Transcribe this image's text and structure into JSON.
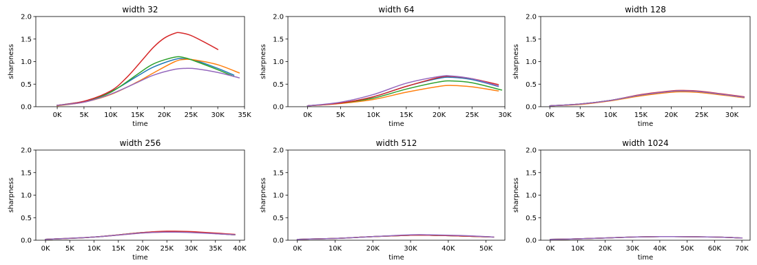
{
  "chart_data": [
    {
      "type": "line",
      "title": "width 32",
      "xlabel": "time",
      "ylabel": "sharpness",
      "xlim": [
        -4000,
        35000
      ],
      "ylim": [
        0,
        2.0
      ],
      "xticks": [
        0,
        5000,
        10000,
        15000,
        20000,
        25000,
        30000,
        35000
      ],
      "xtick_labels": [
        "0K",
        "5K",
        "10K",
        "15K",
        "20K",
        "25K",
        "30K",
        "35K"
      ],
      "yticks": [
        0,
        0.5,
        1.0,
        1.5,
        2.0
      ],
      "ytick_labels": [
        "0.0",
        "0.5",
        "1.0",
        "1.5",
        "2.0"
      ],
      "series": [
        {
          "color": "#1f77b4",
          "x": [
            0,
            5000,
            10000,
            15000,
            18000,
            22000,
            24000,
            26000,
            30000,
            33000
          ],
          "y": [
            0.03,
            0.12,
            0.33,
            0.68,
            0.88,
            1.05,
            1.06,
            1.02,
            0.85,
            0.7
          ]
        },
        {
          "color": "#ff7f0e",
          "x": [
            0,
            5000,
            10000,
            15000,
            18000,
            22000,
            24000,
            26000,
            30000,
            34000
          ],
          "y": [
            0.02,
            0.1,
            0.27,
            0.55,
            0.75,
            1.0,
            1.05,
            1.03,
            0.93,
            0.75
          ]
        },
        {
          "color": "#2ca02c",
          "x": [
            0,
            5000,
            10000,
            15000,
            18000,
            22000,
            24000,
            26000,
            30000,
            33000
          ],
          "y": [
            0.03,
            0.11,
            0.32,
            0.72,
            0.95,
            1.1,
            1.08,
            1.0,
            0.82,
            0.67
          ]
        },
        {
          "color": "#d62728",
          "x": [
            0,
            5000,
            10000,
            13000,
            16000,
            18000,
            20000,
            22000,
            23000,
            25000,
            28000,
            30000
          ],
          "y": [
            0.03,
            0.12,
            0.35,
            0.65,
            1.05,
            1.32,
            1.52,
            1.63,
            1.64,
            1.58,
            1.4,
            1.27
          ]
        },
        {
          "color": "#9467bd",
          "x": [
            0,
            5000,
            10000,
            15000,
            18000,
            22000,
            24000,
            26000,
            30000,
            34000
          ],
          "y": [
            0.03,
            0.1,
            0.28,
            0.54,
            0.7,
            0.83,
            0.85,
            0.84,
            0.76,
            0.64
          ]
        }
      ]
    },
    {
      "type": "line",
      "title": "width 64",
      "xlabel": "time",
      "ylabel": "sharpness",
      "xlim": [
        -3000,
        30000
      ],
      "ylim": [
        0,
        2.0
      ],
      "xticks": [
        0,
        5000,
        10000,
        15000,
        20000,
        25000,
        30000
      ],
      "xtick_labels": [
        "0K",
        "5K",
        "10K",
        "15K",
        "20K",
        "25K",
        "30K"
      ],
      "yticks": [
        0,
        0.5,
        1.0,
        1.5,
        2.0
      ],
      "ytick_labels": [
        "0.0",
        "0.5",
        "1.0",
        "1.5",
        "2.0"
      ],
      "series": [
        {
          "color": "#1f77b4",
          "x": [
            0,
            5000,
            10000,
            15000,
            20000,
            22000,
            25000,
            29000
          ],
          "y": [
            0.02,
            0.08,
            0.22,
            0.45,
            0.63,
            0.65,
            0.6,
            0.45
          ]
        },
        {
          "color": "#ff7f0e",
          "x": [
            0,
            5000,
            10000,
            15000,
            20000,
            22000,
            25000,
            29000
          ],
          "y": [
            0.02,
            0.07,
            0.16,
            0.32,
            0.45,
            0.47,
            0.44,
            0.35
          ]
        },
        {
          "color": "#2ca02c",
          "x": [
            0,
            5000,
            10000,
            15000,
            20000,
            22000,
            25000,
            29500
          ],
          "y": [
            0.02,
            0.08,
            0.19,
            0.39,
            0.55,
            0.57,
            0.53,
            0.37
          ]
        },
        {
          "color": "#d62728",
          "x": [
            0,
            5000,
            10000,
            15000,
            20000,
            22000,
            25000,
            29000
          ],
          "y": [
            0.02,
            0.08,
            0.22,
            0.45,
            0.65,
            0.67,
            0.62,
            0.49
          ]
        },
        {
          "color": "#9467bd",
          "x": [
            0,
            5000,
            10000,
            15000,
            20000,
            22000,
            25000,
            29000
          ],
          "y": [
            0.02,
            0.1,
            0.27,
            0.52,
            0.67,
            0.68,
            0.62,
            0.46
          ]
        }
      ]
    },
    {
      "type": "line",
      "title": "width 128",
      "xlabel": "time",
      "ylabel": "sharpness",
      "xlim": [
        -1500,
        33000
      ],
      "ylim": [
        0,
        2.0
      ],
      "xticks": [
        0,
        5000,
        10000,
        15000,
        20000,
        25000,
        30000
      ],
      "xtick_labels": [
        "0K",
        "5K",
        "10K",
        "15K",
        "20K",
        "25K",
        "30K"
      ],
      "yticks": [
        0,
        0.5,
        1.0,
        1.5,
        2.0
      ],
      "ytick_labels": [
        "0.0",
        "0.5",
        "1.0",
        "1.5",
        "2.0"
      ],
      "series": [
        {
          "color": "#1f77b4",
          "x": [
            0,
            5000,
            10000,
            15000,
            20000,
            22000,
            25000,
            32000
          ],
          "y": [
            0.02,
            0.06,
            0.14,
            0.26,
            0.34,
            0.35,
            0.33,
            0.21
          ]
        },
        {
          "color": "#ff7f0e",
          "x": [
            0,
            5000,
            10000,
            15000,
            20000,
            22000,
            25000,
            32000
          ],
          "y": [
            0.02,
            0.05,
            0.13,
            0.24,
            0.32,
            0.33,
            0.31,
            0.2
          ]
        },
        {
          "color": "#2ca02c",
          "x": [
            0,
            5000,
            10000,
            15000,
            20000,
            22000,
            25000,
            32000
          ],
          "y": [
            0.02,
            0.06,
            0.14,
            0.26,
            0.34,
            0.35,
            0.33,
            0.21
          ]
        },
        {
          "color": "#d62728",
          "x": [
            0,
            5000,
            10000,
            15000,
            20000,
            22000,
            25000,
            32000
          ],
          "y": [
            0.02,
            0.06,
            0.14,
            0.27,
            0.35,
            0.36,
            0.34,
            0.22
          ]
        },
        {
          "color": "#9467bd",
          "x": [
            0,
            5000,
            10000,
            15000,
            20000,
            22000,
            25000,
            32000
          ],
          "y": [
            0.02,
            0.06,
            0.14,
            0.26,
            0.34,
            0.35,
            0.33,
            0.21
          ]
        }
      ]
    },
    {
      "type": "line",
      "title": "width 256",
      "xlabel": "time",
      "ylabel": "sharpness",
      "xlim": [
        -2000,
        41000
      ],
      "ylim": [
        0,
        2.0
      ],
      "xticks": [
        0,
        5000,
        10000,
        15000,
        20000,
        25000,
        30000,
        35000,
        40000
      ],
      "xtick_labels": [
        "0K",
        "5K",
        "10K",
        "15K",
        "20K",
        "25K",
        "30K",
        "35K",
        "40K"
      ],
      "yticks": [
        0,
        0.5,
        1.0,
        1.5,
        2.0
      ],
      "ytick_labels": [
        "0.0",
        "0.5",
        "1.0",
        "1.5",
        "2.0"
      ],
      "series": [
        {
          "color": "#1f77b4",
          "x": [
            0,
            10000,
            20000,
            25000,
            30000,
            39000
          ],
          "y": [
            0.02,
            0.07,
            0.17,
            0.19,
            0.18,
            0.12
          ]
        },
        {
          "color": "#ff7f0e",
          "x": [
            0,
            10000,
            20000,
            25000,
            30000,
            39000
          ],
          "y": [
            0.02,
            0.07,
            0.16,
            0.18,
            0.18,
            0.12
          ]
        },
        {
          "color": "#2ca02c",
          "x": [
            0,
            10000,
            20000,
            25000,
            30000,
            39000
          ],
          "y": [
            0.02,
            0.07,
            0.17,
            0.19,
            0.18,
            0.12
          ]
        },
        {
          "color": "#d62728",
          "x": [
            0,
            10000,
            20000,
            25000,
            30000,
            39000
          ],
          "y": [
            0.02,
            0.07,
            0.17,
            0.2,
            0.19,
            0.13
          ]
        },
        {
          "color": "#9467bd",
          "x": [
            0,
            10000,
            20000,
            25000,
            30000,
            39000
          ],
          "y": [
            0.02,
            0.07,
            0.16,
            0.18,
            0.17,
            0.12
          ]
        }
      ]
    },
    {
      "type": "line",
      "title": "width 512",
      "xlabel": "time",
      "ylabel": "sharpness",
      "xlim": [
        -2500,
        55000
      ],
      "ylim": [
        0,
        2.0
      ],
      "xticks": [
        0,
        10000,
        20000,
        30000,
        40000,
        50000
      ],
      "xtick_labels": [
        "0K",
        "10K",
        "20K",
        "30K",
        "40K",
        "50K"
      ],
      "yticks": [
        0,
        0.5,
        1.0,
        1.5,
        2.0
      ],
      "ytick_labels": [
        "0.0",
        "0.5",
        "1.0",
        "1.5",
        "2.0"
      ],
      "series": [
        {
          "color": "#1f77b4",
          "x": [
            0,
            10000,
            20000,
            30000,
            35000,
            45000,
            52000
          ],
          "y": [
            0.02,
            0.04,
            0.08,
            0.11,
            0.11,
            0.09,
            0.07
          ]
        },
        {
          "color": "#ff7f0e",
          "x": [
            0,
            10000,
            20000,
            30000,
            35000,
            45000,
            52000
          ],
          "y": [
            0.02,
            0.04,
            0.08,
            0.11,
            0.11,
            0.09,
            0.07
          ]
        },
        {
          "color": "#2ca02c",
          "x": [
            0,
            10000,
            20000,
            30000,
            35000,
            45000,
            52000
          ],
          "y": [
            0.02,
            0.04,
            0.08,
            0.11,
            0.11,
            0.09,
            0.07
          ]
        },
        {
          "color": "#d62728",
          "x": [
            0,
            10000,
            20000,
            30000,
            35000,
            45000,
            52000
          ],
          "y": [
            0.02,
            0.04,
            0.08,
            0.11,
            0.11,
            0.09,
            0.07
          ]
        },
        {
          "color": "#9467bd",
          "x": [
            0,
            10000,
            20000,
            30000,
            35000,
            45000,
            52000
          ],
          "y": [
            0.02,
            0.04,
            0.08,
            0.12,
            0.12,
            0.1,
            0.07
          ]
        }
      ]
    },
    {
      "type": "line",
      "title": "width 1024",
      "xlabel": "time",
      "ylabel": "sharpness",
      "xlim": [
        -3500,
        73000
      ],
      "ylim": [
        0,
        2.0
      ],
      "xticks": [
        0,
        10000,
        20000,
        30000,
        40000,
        50000,
        60000,
        70000
      ],
      "xtick_labels": [
        "0K",
        "10K",
        "20K",
        "30K",
        "40K",
        "50K",
        "60K",
        "70K"
      ],
      "yticks": [
        0,
        0.5,
        1.0,
        1.5,
        2.0
      ],
      "ytick_labels": [
        "0.0",
        "0.5",
        "1.0",
        "1.5",
        "2.0"
      ],
      "series": [
        {
          "color": "#1f77b4",
          "x": [
            0,
            10000,
            20000,
            30000,
            40000,
            45000,
            60000,
            70000
          ],
          "y": [
            0.02,
            0.03,
            0.05,
            0.07,
            0.08,
            0.08,
            0.07,
            0.05
          ]
        },
        {
          "color": "#ff7f0e",
          "x": [
            0,
            10000,
            20000,
            30000,
            40000,
            45000,
            60000,
            70000
          ],
          "y": [
            0.02,
            0.03,
            0.05,
            0.07,
            0.08,
            0.08,
            0.07,
            0.05
          ]
        },
        {
          "color": "#2ca02c",
          "x": [
            0,
            10000,
            20000,
            30000,
            40000,
            45000,
            60000,
            70000
          ],
          "y": [
            0.02,
            0.03,
            0.05,
            0.07,
            0.08,
            0.08,
            0.07,
            0.05
          ]
        },
        {
          "color": "#d62728",
          "x": [
            0,
            10000,
            20000,
            30000,
            40000,
            45000,
            60000,
            70000
          ],
          "y": [
            0.02,
            0.03,
            0.05,
            0.07,
            0.08,
            0.08,
            0.07,
            0.05
          ]
        },
        {
          "color": "#9467bd",
          "x": [
            0,
            10000,
            20000,
            30000,
            40000,
            45000,
            60000,
            70000
          ],
          "y": [
            0.02,
            0.03,
            0.05,
            0.07,
            0.08,
            0.08,
            0.07,
            0.05
          ]
        }
      ]
    }
  ]
}
